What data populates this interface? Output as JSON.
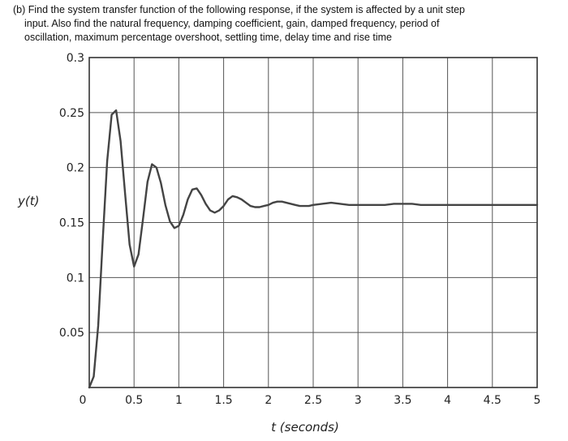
{
  "question": {
    "line1": "(b) Find the system transfer function of the following response, if the system is affected by a unit step",
    "line2": "input. Also find the natural frequency, damping coefficient, gain, damped frequency, period of",
    "line3": "oscillation, maximum percentage overshoot, settling time, delay time and rise time"
  },
  "chart_data": {
    "type": "line",
    "title": "",
    "xlabel": "t (seconds)",
    "ylabel": "y(t)",
    "xlim": [
      0,
      5
    ],
    "ylim": [
      0,
      0.3
    ],
    "grid": true,
    "x_ticks": [
      "0",
      "0.5",
      "1",
      "1.5",
      "2",
      "2.5",
      "3",
      "3.5",
      "4",
      "4.5",
      "5"
    ],
    "y_ticks": [
      "0.3",
      "0.25",
      "0.2",
      "0.15",
      "0.1",
      "0.05"
    ],
    "series": [
      {
        "name": "",
        "color": "#444444",
        "x": [
          0,
          0.05,
          0.1,
          0.15,
          0.2,
          0.25,
          0.3,
          0.35,
          0.4,
          0.45,
          0.5,
          0.55,
          0.6,
          0.65,
          0.7,
          0.75,
          0.8,
          0.85,
          0.9,
          0.95,
          1.0,
          1.05,
          1.1,
          1.15,
          1.2,
          1.25,
          1.3,
          1.35,
          1.4,
          1.45,
          1.5,
          1.55,
          1.6,
          1.65,
          1.7,
          1.75,
          1.8,
          1.85,
          1.9,
          1.95,
          2.0,
          2.05,
          2.1,
          2.15,
          2.2,
          2.25,
          2.3,
          2.35,
          2.4,
          2.45,
          2.5,
          2.6,
          2.7,
          2.8,
          2.9,
          3.0,
          3.1,
          3.2,
          3.3,
          3.4,
          3.5,
          3.6,
          3.7,
          3.8,
          3.9,
          4.0,
          4.1,
          4.2,
          4.3,
          4.4,
          4.5,
          4.6,
          4.7,
          4.8,
          4.9,
          5.0
        ],
        "values": [
          0,
          0.01,
          0.056,
          0.134,
          0.206,
          0.248,
          0.252,
          0.224,
          0.176,
          0.13,
          0.11,
          0.121,
          0.153,
          0.187,
          0.203,
          0.2,
          0.186,
          0.166,
          0.151,
          0.145,
          0.147,
          0.157,
          0.171,
          0.18,
          0.181,
          0.175,
          0.167,
          0.161,
          0.159,
          0.161,
          0.165,
          0.171,
          0.174,
          0.173,
          0.171,
          0.168,
          0.165,
          0.164,
          0.164,
          0.165,
          0.166,
          0.168,
          0.169,
          0.169,
          0.168,
          0.167,
          0.166,
          0.165,
          0.165,
          0.165,
          0.166,
          0.167,
          0.168,
          0.167,
          0.166,
          0.166,
          0.166,
          0.166,
          0.166,
          0.167,
          0.167,
          0.167,
          0.166,
          0.166,
          0.166,
          0.166,
          0.166,
          0.166,
          0.166,
          0.166,
          0.166,
          0.166,
          0.166,
          0.166,
          0.166,
          0.166
        ]
      }
    ]
  }
}
